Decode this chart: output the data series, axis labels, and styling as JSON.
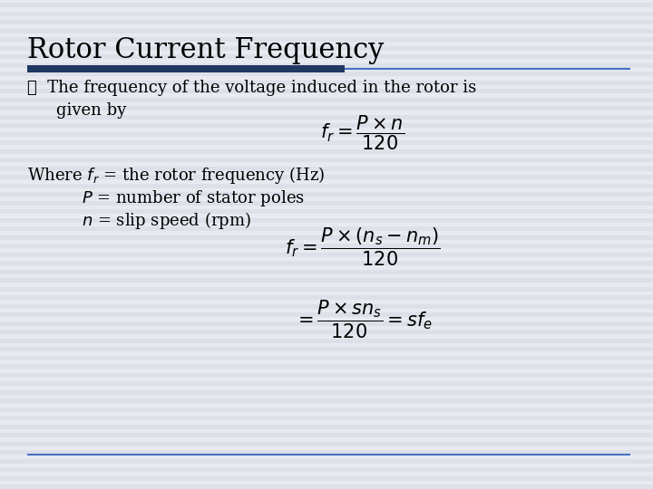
{
  "title": "Rotor Current Frequency",
  "title_fontsize": 22,
  "background_color": "#e8eaf0",
  "stripe_color": "#d8dae4",
  "title_color": "#000000",
  "text_color": "#000000",
  "line_color_thick": "#1f3864",
  "line_color_thin": "#4472c4",
  "bullet": "➤",
  "formula1": "$f_r = \\dfrac{P \\times n}{120}$",
  "where_line": "Where $f_r$ = the rotor frequency (Hz)",
  "p_line": "$P$ = number of stator poles",
  "n_line": "$n$ = slip speed (rpm)",
  "formula2": "$f_r = \\dfrac{P \\times (n_s - n_m)}{120}$",
  "formula3": "$= \\dfrac{P \\times sn_s}{120} = sf_e$",
  "body_fontsize": 13,
  "formula_fontsize": 13
}
